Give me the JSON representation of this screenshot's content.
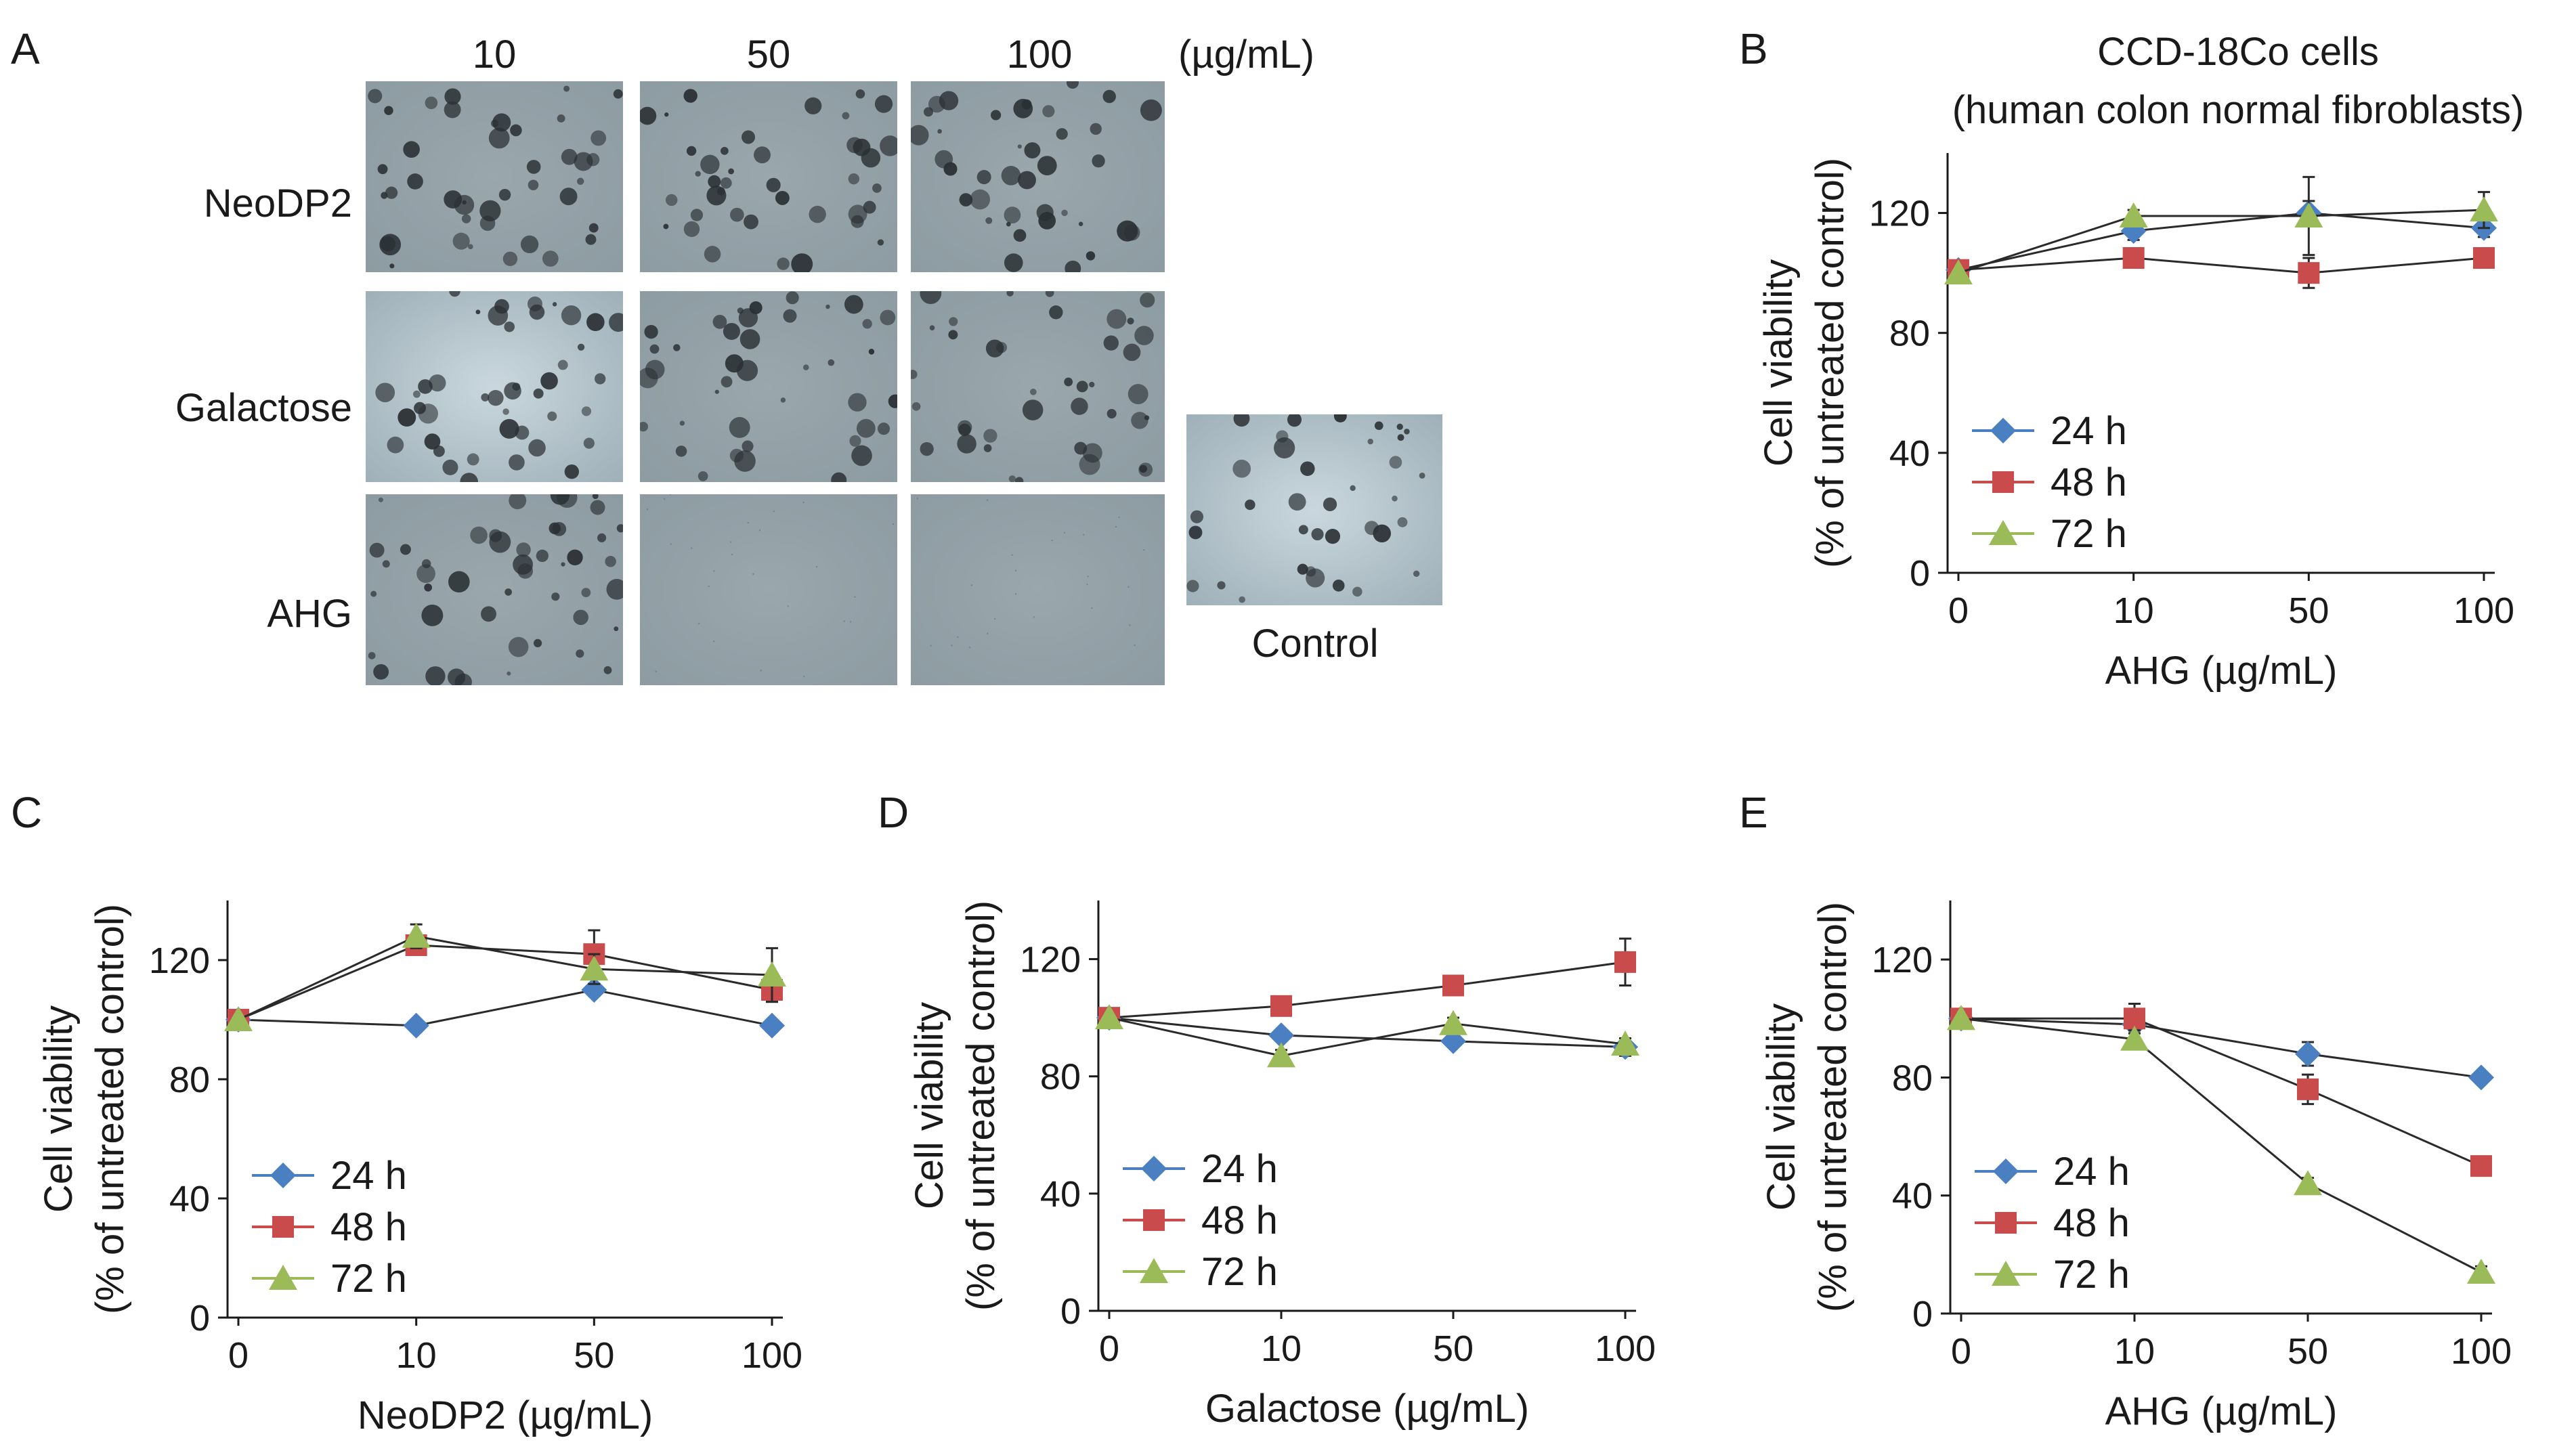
{
  "panelA": {
    "letter": "A",
    "columns": [
      "10",
      "50",
      "100"
    ],
    "unit": "(µg/mL)",
    "rows": [
      "NeoDP2",
      "Galactose",
      "AHG"
    ],
    "control_label": "Control"
  },
  "colors": {
    "24h": "#4a7fc1",
    "48h": "#c94b4b",
    "72h": "#9bbb59",
    "axis": "#1a1a1a",
    "micro_bg": "#8d9ba2",
    "micro_bg_light": "#cad7de",
    "colony": "#2a3034"
  },
  "icons": {
    "24h": "diamond-marker",
    "48h": "square-marker",
    "72h": "triangle-marker"
  },
  "chart_data": [
    {
      "letter": "B",
      "type": "line",
      "title": [
        "CCD-18Co cells",
        "(human colon normal fibroblasts)"
      ],
      "xlabel": "AHG (µg/mL)",
      "ylabel": [
        "Cell viability",
        "(% of untreated control)"
      ],
      "categories": [
        "0",
        "10",
        "50",
        "100"
      ],
      "yticks": [
        0,
        40,
        80,
        120
      ],
      "ylim": [
        0,
        140
      ],
      "legend": "lower-left",
      "series": [
        {
          "name": "24 h",
          "values": [
            101,
            114,
            120,
            115
          ],
          "err": [
            0,
            3,
            4,
            3
          ]
        },
        {
          "name": "48 h",
          "values": [
            101,
            105,
            100,
            105
          ],
          "err": [
            0,
            2,
            5,
            2
          ]
        },
        {
          "name": "72 h",
          "values": [
            100,
            119,
            119,
            121
          ],
          "err": [
            0,
            2,
            13,
            6
          ]
        }
      ]
    },
    {
      "letter": "C",
      "type": "line",
      "xlabel": "NeoDP2 (µg/mL)",
      "ylabel": [
        "Cell viability",
        "(% of untreated control)"
      ],
      "categories": [
        "0",
        "10",
        "50",
        "100"
      ],
      "yticks": [
        0,
        40,
        80,
        120
      ],
      "ylim": [
        0,
        140
      ],
      "legend": "lower-left",
      "series": [
        {
          "name": "24 h",
          "values": [
            100,
            98,
            110,
            98
          ],
          "err": [
            0,
            2,
            2,
            2
          ]
        },
        {
          "name": "48 h",
          "values": [
            100,
            125,
            122,
            110
          ],
          "err": [
            0,
            3,
            8,
            4
          ]
        },
        {
          "name": "72 h",
          "values": [
            100,
            128,
            117,
            115
          ],
          "err": [
            0,
            4,
            5,
            9
          ]
        }
      ]
    },
    {
      "letter": "D",
      "type": "line",
      "xlabel": "Galactose (µg/mL)",
      "ylabel": [
        "Cell viability",
        "(% of untreated control)"
      ],
      "categories": [
        "0",
        "10",
        "50",
        "100"
      ],
      "yticks": [
        0,
        40,
        80,
        120
      ],
      "ylim": [
        0,
        140
      ],
      "legend": "lower-left",
      "series": [
        {
          "name": "24 h",
          "values": [
            100,
            94,
            92,
            90
          ],
          "err": [
            0,
            2,
            2,
            3
          ]
        },
        {
          "name": "48 h",
          "values": [
            100,
            104,
            111,
            119
          ],
          "err": [
            0,
            2,
            2,
            8
          ]
        },
        {
          "name": "72 h",
          "values": [
            100,
            87,
            98,
            91
          ],
          "err": [
            0,
            2,
            2,
            2
          ]
        }
      ]
    },
    {
      "letter": "E",
      "type": "line",
      "xlabel": "AHG (µg/mL)",
      "ylabel": [
        "Cell viability",
        "(% of untreated control)"
      ],
      "categories": [
        "0",
        "10",
        "50",
        "100"
      ],
      "yticks": [
        0,
        40,
        80,
        120
      ],
      "ylim": [
        0,
        140
      ],
      "legend": "lower-left",
      "series": [
        {
          "name": "24 h",
          "values": [
            100,
            98,
            88,
            80
          ],
          "err": [
            0,
            3,
            4,
            2
          ]
        },
        {
          "name": "48 h",
          "values": [
            100,
            100,
            76,
            50
          ],
          "err": [
            0,
            5,
            5,
            3
          ]
        },
        {
          "name": "72 h",
          "values": [
            100,
            93,
            44,
            14
          ],
          "err": [
            0,
            3,
            2,
            2
          ]
        }
      ]
    }
  ]
}
